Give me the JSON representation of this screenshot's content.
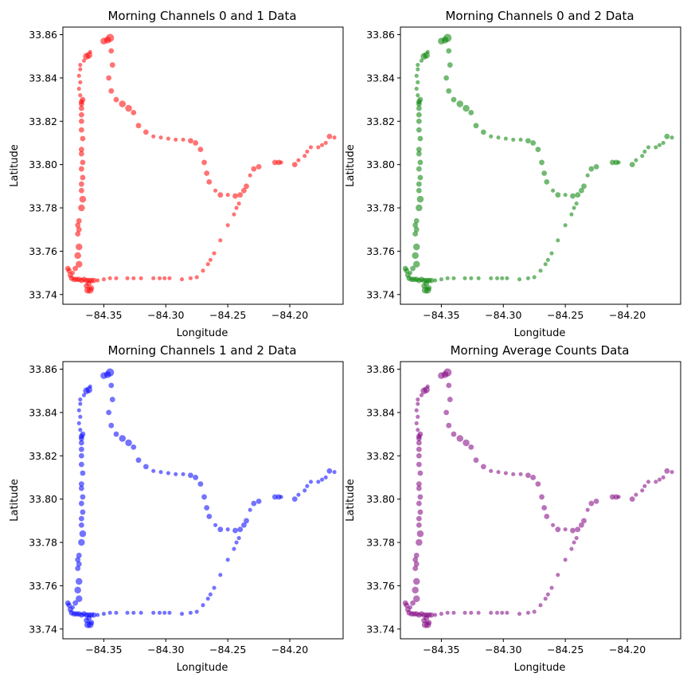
{
  "chart_data": [
    {
      "type": "scatter",
      "title": "Morning Channels 0 and 1 Data",
      "xlabel": "Longitude",
      "ylabel": "Latitude",
      "xlim": [
        -84.383,
        -84.157
      ],
      "ylim": [
        33.7355,
        33.8635
      ],
      "xticks": [
        -84.35,
        -84.3,
        -84.25,
        -84.2
      ],
      "xtick_labels": [
        "−84.35",
        "−84.30",
        "−84.25",
        "−84.20"
      ],
      "yticks": [
        33.74,
        33.76,
        33.78,
        33.8,
        33.82,
        33.84,
        33.86
      ],
      "ytick_labels": [
        "33.74",
        "33.76",
        "33.78",
        "33.80",
        "33.82",
        "33.84",
        "33.86"
      ],
      "color": "#ff0000",
      "grid": false,
      "route": "main"
    },
    {
      "type": "scatter",
      "title": "Morning Channels 0 and 2 Data",
      "xlabel": "Longitude",
      "ylabel": "Latitude",
      "xlim": [
        -84.383,
        -84.157
      ],
      "ylim": [
        33.7355,
        33.8635
      ],
      "xticks": [
        -84.35,
        -84.3,
        -84.25,
        -84.2
      ],
      "xtick_labels": [
        "−84.35",
        "−84.30",
        "−84.25",
        "−84.20"
      ],
      "yticks": [
        33.74,
        33.76,
        33.78,
        33.8,
        33.82,
        33.84,
        33.86
      ],
      "ytick_labels": [
        "33.74",
        "33.76",
        "33.78",
        "33.80",
        "33.82",
        "33.84",
        "33.86"
      ],
      "color": "#008000",
      "grid": false,
      "route": "main"
    },
    {
      "type": "scatter",
      "title": "Morning Channels 1 and 2 Data",
      "xlabel": "Longitude",
      "ylabel": "Latitude",
      "xlim": [
        -84.383,
        -84.157
      ],
      "ylim": [
        33.7355,
        33.8635
      ],
      "xticks": [
        -84.35,
        -84.3,
        -84.25,
        -84.2
      ],
      "xtick_labels": [
        "−84.35",
        "−84.30",
        "−84.25",
        "−84.20"
      ],
      "yticks": [
        33.74,
        33.76,
        33.78,
        33.8,
        33.82,
        33.84,
        33.86
      ],
      "ytick_labels": [
        "33.74",
        "33.76",
        "33.78",
        "33.80",
        "33.82",
        "33.84",
        "33.86"
      ],
      "color": "#0000ff",
      "grid": false,
      "route": "main"
    },
    {
      "type": "scatter",
      "title": "Morning Average Counts Data",
      "xlabel": "Longitude",
      "ylabel": "Latitude",
      "xlim": [
        -84.383,
        -84.157
      ],
      "ylim": [
        33.7355,
        33.8635
      ],
      "xticks": [
        -84.35,
        -84.3,
        -84.25,
        -84.2
      ],
      "xtick_labels": [
        "−84.35",
        "−84.30",
        "−84.25",
        "−84.20"
      ],
      "yticks": [
        33.74,
        33.76,
        33.78,
        33.8,
        33.82,
        33.84,
        33.86
      ],
      "ytick_labels": [
        "33.74",
        "33.76",
        "33.78",
        "33.80",
        "33.82",
        "33.84",
        "33.86"
      ],
      "color": "#800080",
      "grid": false,
      "route": "main"
    }
  ],
  "routes": {
    "main": [
      [
        -84.35,
        33.857,
        5
      ],
      [
        -84.345,
        33.8585,
        6
      ],
      [
        -84.347,
        33.8575,
        5
      ],
      [
        -84.344,
        33.8525,
        4
      ],
      [
        -84.343,
        33.846,
        4
      ],
      [
        -84.346,
        33.84,
        4
      ],
      [
        -84.344,
        33.834,
        4
      ],
      [
        -84.34,
        33.83,
        4
      ],
      [
        -84.335,
        33.828,
        5
      ],
      [
        -84.33,
        33.826,
        5
      ],
      [
        -84.326,
        33.824,
        4
      ],
      [
        -84.322,
        33.818,
        4
      ],
      [
        -84.316,
        33.815,
        4
      ],
      [
        -84.31,
        33.813,
        3
      ],
      [
        -84.304,
        33.8125,
        3
      ],
      [
        -84.298,
        33.812,
        3
      ],
      [
        -84.292,
        33.8115,
        3
      ],
      [
        -84.286,
        33.8115,
        3
      ],
      [
        -84.28,
        33.811,
        4
      ],
      [
        -84.276,
        33.81,
        4
      ],
      [
        -84.272,
        33.807,
        4
      ],
      [
        -84.269,
        33.801,
        4
      ],
      [
        -84.267,
        33.796,
        4
      ],
      [
        -84.265,
        33.792,
        4
      ],
      [
        -84.26,
        33.788,
        3
      ],
      [
        -84.256,
        33.786,
        4
      ],
      [
        -84.25,
        33.786,
        3
      ],
      [
        -84.244,
        33.7855,
        4
      ],
      [
        -84.24,
        33.786,
        4
      ],
      [
        -84.237,
        33.788,
        4
      ],
      [
        -84.235,
        33.79,
        4
      ],
      [
        -84.232,
        33.795,
        3
      ],
      [
        -84.229,
        33.798,
        4
      ],
      [
        -84.225,
        33.799,
        4
      ],
      [
        -84.212,
        33.801,
        4
      ],
      [
        -84.209,
        33.801,
        4
      ],
      [
        -84.207,
        33.801,
        3
      ],
      [
        -84.196,
        33.8,
        4
      ],
      [
        -84.193,
        33.802,
        3
      ],
      [
        -84.188,
        33.804,
        3
      ],
      [
        -84.186,
        33.806,
        3
      ],
      [
        -84.183,
        33.808,
        3
      ],
      [
        -84.177,
        33.808,
        3
      ],
      [
        -84.174,
        33.809,
        3
      ],
      [
        -84.171,
        33.81,
        3
      ],
      [
        -84.168,
        33.813,
        4
      ],
      [
        -84.164,
        33.8125,
        3
      ],
      [
        -84.241,
        33.782,
        3
      ],
      [
        -84.243,
        33.78,
        3
      ],
      [
        -84.245,
        33.777,
        3
      ],
      [
        -84.25,
        33.772,
        3
      ],
      [
        -84.256,
        33.765,
        3
      ],
      [
        -84.261,
        33.759,
        3
      ],
      [
        -84.264,
        33.756,
        3
      ],
      [
        -84.266,
        33.754,
        3
      ],
      [
        -84.27,
        33.751,
        3
      ],
      [
        -84.275,
        33.748,
        3
      ],
      [
        -84.28,
        33.7475,
        3
      ],
      [
        -84.287,
        33.747,
        3
      ],
      [
        -84.297,
        33.7475,
        3
      ],
      [
        -84.301,
        33.7475,
        3
      ],
      [
        -84.305,
        33.7475,
        3
      ],
      [
        -84.31,
        33.7475,
        3
      ],
      [
        -84.32,
        33.7475,
        3
      ],
      [
        -84.326,
        33.7475,
        3
      ],
      [
        -84.331,
        33.7475,
        3
      ],
      [
        -84.34,
        33.7475,
        3
      ],
      [
        -84.345,
        33.7475,
        3
      ],
      [
        -84.35,
        33.747,
        3
      ],
      [
        -84.355,
        33.7465,
        3
      ],
      [
        -84.358,
        33.7465,
        4
      ],
      [
        -84.36,
        33.7465,
        4
      ],
      [
        -84.362,
        33.7465,
        4
      ],
      [
        -84.364,
        33.7465,
        4
      ],
      [
        -84.366,
        33.747,
        4
      ],
      [
        -84.368,
        33.7465,
        4
      ],
      [
        -84.37,
        33.747,
        4
      ],
      [
        -84.372,
        33.747,
        4
      ],
      [
        -84.374,
        33.747,
        4
      ],
      [
        -84.376,
        33.7475,
        4
      ],
      [
        -84.377,
        33.749,
        4
      ],
      [
        -84.378,
        33.751,
        4
      ],
      [
        -84.379,
        33.752,
        4
      ],
      [
        -84.375,
        33.75,
        3
      ],
      [
        -84.373,
        33.752,
        4
      ],
      [
        -84.37,
        33.754,
        5
      ],
      [
        -84.371,
        33.758,
        5
      ],
      [
        -84.37,
        33.762,
        5
      ],
      [
        -84.371,
        33.768,
        4
      ],
      [
        -84.37,
        33.77,
        4
      ],
      [
        -84.371,
        33.772,
        4
      ],
      [
        -84.37,
        33.774,
        4
      ],
      [
        -84.368,
        33.78,
        5
      ],
      [
        -84.367,
        33.784,
        5
      ],
      [
        -84.368,
        33.788,
        4
      ],
      [
        -84.368,
        33.791,
        4
      ],
      [
        -84.367,
        33.794,
        4
      ],
      [
        -84.368,
        33.798,
        4
      ],
      [
        -84.367,
        33.801,
        4
      ],
      [
        -84.368,
        33.805,
        4
      ],
      [
        -84.368,
        33.807,
        4
      ],
      [
        -84.367,
        33.812,
        4
      ],
      [
        -84.368,
        33.816,
        4
      ],
      [
        -84.368,
        33.82,
        4
      ],
      [
        -84.368,
        33.823,
        4
      ],
      [
        -84.368,
        33.826,
        4
      ],
      [
        -84.368,
        33.828,
        4
      ],
      [
        -84.368,
        33.829,
        4
      ],
      [
        -84.367,
        33.83,
        4
      ],
      [
        -84.369,
        33.832,
        3
      ],
      [
        -84.37,
        33.835,
        3
      ],
      [
        -84.369,
        33.838,
        3
      ],
      [
        -84.37,
        33.841,
        3
      ],
      [
        -84.369,
        33.844,
        3
      ],
      [
        -84.369,
        33.846,
        3
      ],
      [
        -84.366,
        33.848,
        3
      ],
      [
        -84.364,
        33.85,
        5
      ],
      [
        -84.362,
        33.8505,
        5
      ],
      [
        -84.361,
        33.852,
        3
      ],
      [
        -84.363,
        33.742,
        5
      ],
      [
        -84.361,
        33.742,
        5
      ],
      [
        -84.36,
        33.743,
        4
      ],
      [
        -84.364,
        33.744,
        4
      ],
      [
        -84.362,
        33.745,
        4
      ]
    ]
  }
}
